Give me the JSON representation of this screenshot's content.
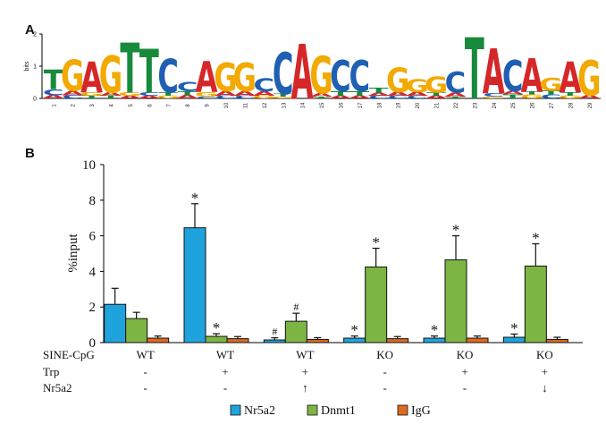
{
  "panels": {
    "a_label": "A",
    "b_label": "B"
  },
  "colors": {
    "A": "#d62728",
    "C": "#1f5fb4",
    "G": "#f2a900",
    "T": "#188a3c",
    "nr5a2": "#1fa3dc",
    "dnmt1": "#7db544",
    "igg": "#dd6a1f"
  },
  "logo": {
    "ylabel": "bits",
    "yticks": [
      "0",
      "1",
      "2"
    ],
    "ylim": [
      0,
      2
    ],
    "positions": [
      {
        "pos": "1",
        "letters": [
          {
            "b": "A",
            "h": 0.1
          },
          {
            "b": "C",
            "h": 0.18
          },
          {
            "b": "T",
            "h": 0.62
          }
        ]
      },
      {
        "pos": "2",
        "letters": [
          {
            "b": "C",
            "h": 0.1
          },
          {
            "b": "A",
            "h": 0.14
          },
          {
            "b": "G",
            "h": 0.95
          }
        ]
      },
      {
        "pos": "3",
        "letters": [
          {
            "b": "T",
            "h": 0.08
          },
          {
            "b": "G",
            "h": 0.1
          },
          {
            "b": "A",
            "h": 0.95
          }
        ]
      },
      {
        "pos": "4",
        "letters": [
          {
            "b": "T",
            "h": 0.08
          },
          {
            "b": "A",
            "h": 0.1
          },
          {
            "b": "G",
            "h": 1.15
          }
        ]
      },
      {
        "pos": "5",
        "letters": [
          {
            "b": "A",
            "h": 0.08
          },
          {
            "b": "G",
            "h": 0.1
          },
          {
            "b": "T",
            "h": 1.55
          }
        ]
      },
      {
        "pos": "6",
        "letters": [
          {
            "b": "A",
            "h": 0.08
          },
          {
            "b": "C",
            "h": 0.1
          },
          {
            "b": "T",
            "h": 1.35
          }
        ]
      },
      {
        "pos": "7",
        "letters": [
          {
            "b": "G",
            "h": 0.08
          },
          {
            "b": "T",
            "h": 0.1
          },
          {
            "b": "C",
            "h": 1.05
          }
        ]
      },
      {
        "pos": "8",
        "letters": [
          {
            "b": "A",
            "h": 0.1
          },
          {
            "b": "T",
            "h": 0.12
          },
          {
            "b": "C",
            "h": 0.28
          }
        ]
      },
      {
        "pos": "9",
        "letters": [
          {
            "b": "C",
            "h": 0.06
          },
          {
            "b": "G",
            "h": 0.14
          },
          {
            "b": "A",
            "h": 0.95
          }
        ]
      },
      {
        "pos": "10",
        "letters": [
          {
            "b": "C",
            "h": 0.08
          },
          {
            "b": "A",
            "h": 0.14
          },
          {
            "b": "G",
            "h": 0.88
          }
        ]
      },
      {
        "pos": "11",
        "letters": [
          {
            "b": "C",
            "h": 0.08
          },
          {
            "b": "A",
            "h": 0.14
          },
          {
            "b": "G",
            "h": 0.88
          }
        ]
      },
      {
        "pos": "12",
        "letters": [
          {
            "b": "G",
            "h": 0.08
          },
          {
            "b": "A",
            "h": 0.14
          },
          {
            "b": "C",
            "h": 0.4
          }
        ]
      },
      {
        "pos": "13",
        "letters": [
          {
            "b": "G",
            "h": 0.06
          },
          {
            "b": "T",
            "h": 0.08
          },
          {
            "b": "C",
            "h": 1.3
          }
        ]
      },
      {
        "pos": "14",
        "letters": [
          {
            "b": "A",
            "h": 1.7
          }
        ]
      },
      {
        "pos": "15",
        "letters": [
          {
            "b": "T",
            "h": 0.06
          },
          {
            "b": "A",
            "h": 0.1
          },
          {
            "b": "G",
            "h": 1.15
          }
        ]
      },
      {
        "pos": "16",
        "letters": [
          {
            "b": "A",
            "h": 0.08
          },
          {
            "b": "T",
            "h": 0.14
          },
          {
            "b": "C",
            "h": 0.95
          }
        ]
      },
      {
        "pos": "17",
        "letters": [
          {
            "b": "A",
            "h": 0.08
          },
          {
            "b": "T",
            "h": 0.14
          },
          {
            "b": "C",
            "h": 0.95
          }
        ]
      },
      {
        "pos": "18",
        "letters": [
          {
            "b": "C",
            "h": 0.08
          },
          {
            "b": "A",
            "h": 0.08
          },
          {
            "b": "T",
            "h": 0.16
          }
        ]
      },
      {
        "pos": "19",
        "letters": [
          {
            "b": "C",
            "h": 0.08
          },
          {
            "b": "A",
            "h": 0.12
          },
          {
            "b": "G",
            "h": 0.75
          }
        ]
      },
      {
        "pos": "20",
        "letters": [
          {
            "b": "C",
            "h": 0.08
          },
          {
            "b": "A",
            "h": 0.12
          },
          {
            "b": "G",
            "h": 0.4
          }
        ]
      },
      {
        "pos": "21",
        "letters": [
          {
            "b": "A",
            "h": 0.08
          },
          {
            "b": "T",
            "h": 0.1
          },
          {
            "b": "G",
            "h": 0.5
          }
        ]
      },
      {
        "pos": "22",
        "letters": [
          {
            "b": "T",
            "h": 0.06
          },
          {
            "b": "A",
            "h": 0.12
          },
          {
            "b": "C",
            "h": 0.65
          }
        ]
      },
      {
        "pos": "23",
        "letters": [
          {
            "b": "T",
            "h": 1.9
          }
        ]
      },
      {
        "pos": "24",
        "letters": [
          {
            "b": "G",
            "h": 0.06
          },
          {
            "b": "C",
            "h": 0.1
          },
          {
            "b": "A",
            "h": 1.4
          }
        ]
      },
      {
        "pos": "25",
        "letters": [
          {
            "b": "T",
            "h": 0.12
          },
          {
            "b": "A",
            "h": 0.1
          },
          {
            "b": "C",
            "h": 0.95
          }
        ]
      },
      {
        "pos": "26",
        "letters": [
          {
            "b": "G",
            "h": 0.12
          },
          {
            "b": "T",
            "h": 0.08
          },
          {
            "b": "A",
            "h": 1.05
          }
        ]
      },
      {
        "pos": "27",
        "letters": [
          {
            "b": "C",
            "h": 0.12
          },
          {
            "b": "T",
            "h": 0.12
          },
          {
            "b": "G",
            "h": 0.4
          }
        ]
      },
      {
        "pos": "28",
        "letters": [
          {
            "b": "G",
            "h": 0.08
          },
          {
            "b": "T",
            "h": 0.1
          },
          {
            "b": "A",
            "h": 0.95
          }
        ]
      },
      {
        "pos": "29",
        "letters": [
          {
            "b": "A",
            "h": 0.1
          },
          {
            "b": "G",
            "h": 1.1
          }
        ]
      }
    ]
  },
  "chart_data": {
    "type": "bar",
    "ylabel": "%input",
    "ylim": [
      0,
      10
    ],
    "yticks": [
      0,
      2,
      4,
      6,
      8,
      10
    ],
    "grid": false,
    "legend_position": "bottom",
    "condition_labels": [
      "SINE-CpG",
      "Trp",
      "Nr5a2"
    ],
    "groups": [
      {
        "sine_cpg": "WT",
        "trp": "-",
        "nr5a2": "-"
      },
      {
        "sine_cpg": "WT",
        "trp": "+",
        "nr5a2": "-"
      },
      {
        "sine_cpg": "WT",
        "trp": "+",
        "nr5a2": "↑"
      },
      {
        "sine_cpg": "KO",
        "trp": "-",
        "nr5a2": "-"
      },
      {
        "sine_cpg": "KO",
        "trp": "+",
        "nr5a2": "-"
      },
      {
        "sine_cpg": "KO",
        "trp": "+",
        "nr5a2": "↓"
      }
    ],
    "series": [
      {
        "name": "Nr5a2",
        "color": "#1fa3dc",
        "values": [
          2.15,
          6.45,
          0.15,
          0.25,
          0.25,
          0.3
        ],
        "errors": [
          0.9,
          1.35,
          0.12,
          0.12,
          0.12,
          0.18
        ],
        "marks": [
          "",
          "*",
          "#",
          "*",
          "*",
          "*"
        ]
      },
      {
        "name": "Dnmt1",
        "color": "#7db544",
        "values": [
          1.35,
          0.35,
          1.2,
          4.25,
          4.65,
          4.3
        ],
        "errors": [
          0.35,
          0.15,
          0.45,
          1.05,
          1.35,
          1.25
        ],
        "marks": [
          "",
          "*",
          "#",
          "*",
          "*",
          "*"
        ]
      },
      {
        "name": "IgG",
        "color": "#dd6a1f",
        "values": [
          0.25,
          0.22,
          0.18,
          0.22,
          0.25,
          0.18
        ],
        "errors": [
          0.12,
          0.12,
          0.1,
          0.12,
          0.12,
          0.12
        ],
        "marks": [
          "",
          "",
          "",
          "",
          "",
          ""
        ]
      }
    ]
  }
}
